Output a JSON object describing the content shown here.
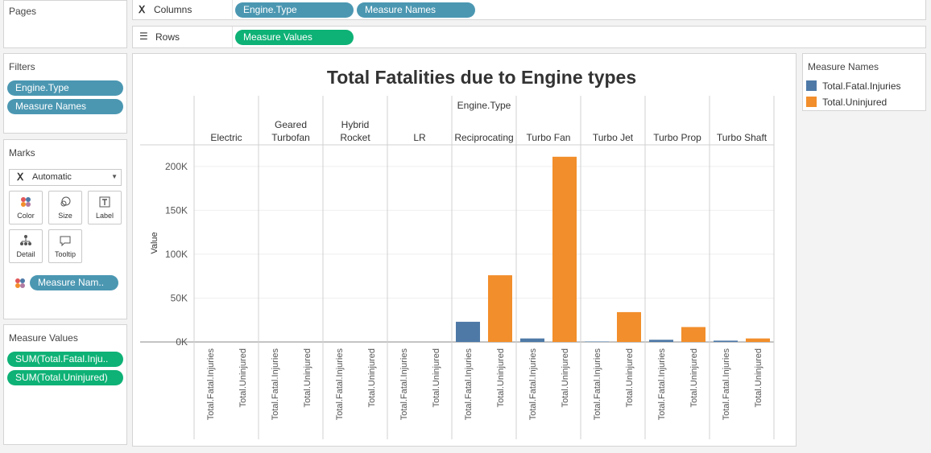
{
  "shelves": {
    "pages_label": "Pages",
    "columns_label": "Columns",
    "columns_pills": [
      "Engine.Type",
      "Measure Names"
    ],
    "rows_label": "Rows",
    "rows_pills": [
      "Measure Values"
    ]
  },
  "filters": {
    "title": "Filters",
    "pills": [
      "Engine.Type",
      "Measure Names"
    ]
  },
  "marks": {
    "title": "Marks",
    "type_selector": "Automatic",
    "buttons": [
      "Color",
      "Size",
      "Label",
      "Detail",
      "Tooltip"
    ],
    "color_pill": "Measure Nam.."
  },
  "measure_values": {
    "title": "Measure Values",
    "pills": [
      "SUM(Total.Fatal.Inju..",
      "SUM(Total.Uninjured)"
    ]
  },
  "legend": {
    "title": "Measure Names",
    "items": [
      {
        "label": "Total.Fatal.Injuries",
        "color": "#4e79a7"
      },
      {
        "label": "Total.Uninjured",
        "color": "#f28e2b"
      }
    ]
  },
  "chart_data": {
    "type": "bar",
    "title": "Total Fatalities due to Engine types",
    "column_header": "Engine.Type",
    "ylabel": "Value",
    "ylim": [
      0,
      220000
    ],
    "y_ticks": [
      0,
      50000,
      100000,
      150000,
      200000
    ],
    "y_tick_labels": [
      "0K",
      "50K",
      "100K",
      "150K",
      "200K"
    ],
    "grid": true,
    "categories": [
      "Electric",
      "Geared Turbofan",
      "Hybrid Rocket",
      "LR",
      "Reciprocating",
      "Turbo Fan",
      "Turbo Jet",
      "Turbo Prop",
      "Turbo Shaft"
    ],
    "category_labels": [
      [
        "Electric"
      ],
      [
        "Geared",
        "Turbofan"
      ],
      [
        "Hybrid",
        "Rocket"
      ],
      [
        "LR"
      ],
      [
        "Reciprocating"
      ],
      [
        "Turbo Fan"
      ],
      [
        "Turbo Jet"
      ],
      [
        "Turbo Prop"
      ],
      [
        "Turbo Shaft"
      ]
    ],
    "sub_labels": [
      "Total.Fatal.Injuries",
      "Total.Uninjured"
    ],
    "series": [
      {
        "name": "Total.Fatal.Injuries",
        "color": "#4e79a7",
        "values": [
          0,
          0,
          0,
          0,
          23000,
          4000,
          500,
          2500,
          1500
        ]
      },
      {
        "name": "Total.Uninjured",
        "color": "#f28e2b",
        "values": [
          0,
          0,
          0,
          0,
          76000,
          211000,
          34000,
          17000,
          4000
        ]
      }
    ]
  }
}
